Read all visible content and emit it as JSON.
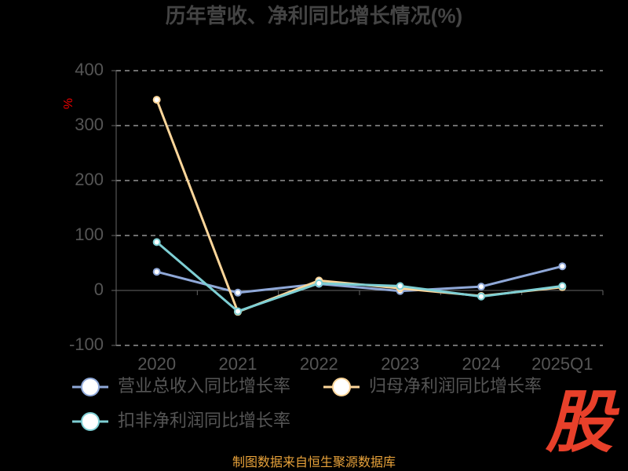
{
  "chart_data": {
    "type": "line",
    "title": "历年营收、净利同比增长情况(%)",
    "y_label": "%",
    "categories": [
      "2020",
      "2021",
      "2022",
      "2023",
      "2024",
      "2025Q1"
    ],
    "series": [
      {
        "name": "营业总收入同比增长率",
        "color": "#8fa8d8",
        "values": [
          34,
          -4,
          12,
          -1,
          7,
          44
        ]
      },
      {
        "name": "归母净利润同比增长率",
        "color": "#fdd69a",
        "values": [
          347,
          -39,
          18,
          4,
          -10,
          6
        ]
      },
      {
        "name": "扣非净利润同比增长率",
        "color": "#7ecfd4",
        "values": [
          88,
          -38,
          13,
          8,
          -11,
          8
        ]
      }
    ],
    "ylim": [
      -100,
      400
    ],
    "yticks": [
      -100,
      0,
      100,
      200,
      300,
      400
    ],
    "grid": true,
    "source": "制图数据来自恒生聚源数据库",
    "watermark": "股"
  }
}
